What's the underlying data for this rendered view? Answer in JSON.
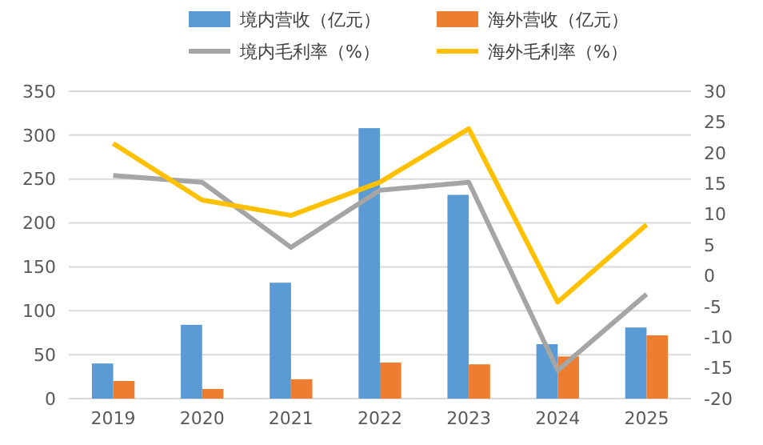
{
  "chart_data": {
    "type": "bar",
    "categories": [
      "2019",
      "2020",
      "2021",
      "2022",
      "2023",
      "2024",
      "2025"
    ],
    "series": [
      {
        "name": "境内营收（亿元）",
        "color": "#5b9bd5",
        "values": [
          40,
          84,
          132,
          308,
          232,
          62,
          81
        ]
      },
      {
        "name": "海外营收（亿元）",
        "color": "#ed7d31",
        "values": [
          20,
          11,
          22,
          41,
          39,
          48,
          72
        ]
      },
      {
        "name": "境内毛利率（%）",
        "type": "line",
        "axis": "y2",
        "color": "#a5a5a5",
        "values": [
          16.3,
          15.2,
          4.6,
          13.9,
          15.2,
          -15.4,
          -3
        ]
      },
      {
        "name": "海外毛利率（%）",
        "type": "line",
        "axis": "y2",
        "color": "#ffc000",
        "values": [
          21.5,
          12.3,
          9.8,
          15.2,
          23.9,
          -4.3,
          8.3
        ]
      }
    ],
    "ylim": [
      0,
      350
    ],
    "yticks": [
      0,
      50,
      100,
      150,
      200,
      250,
      300,
      350
    ],
    "y2lim": [
      -20,
      30
    ],
    "y2ticks": [
      -20,
      -15,
      -10,
      -5,
      0,
      5,
      10,
      15,
      20,
      25,
      30
    ],
    "grid": "y",
    "legend": "top",
    "marker": "none",
    "line_style": "solid"
  }
}
